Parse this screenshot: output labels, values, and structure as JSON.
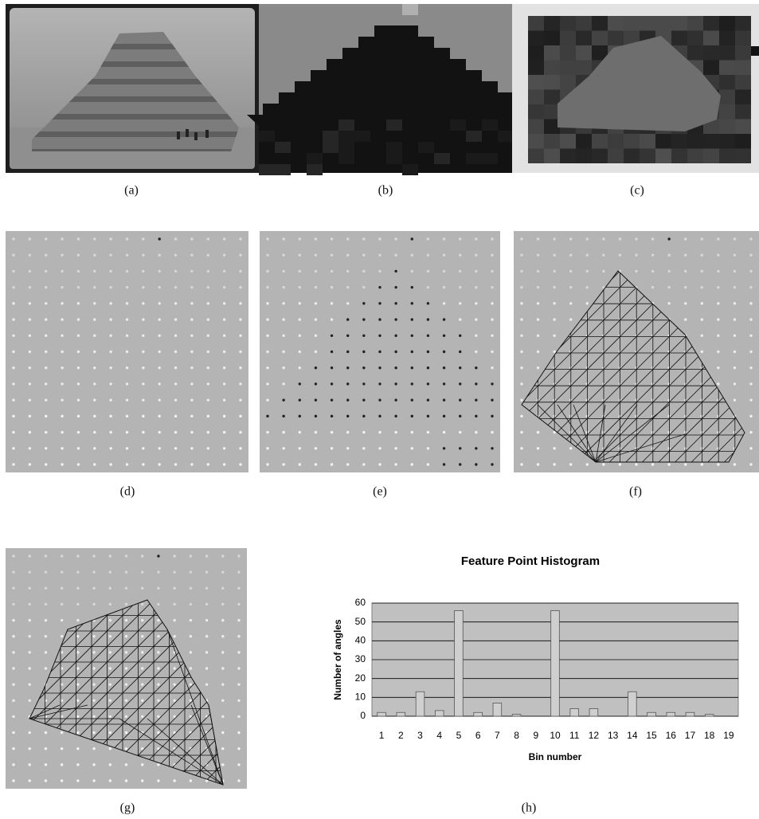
{
  "panels": [
    {
      "label": "(a)"
    },
    {
      "label": "(b)"
    },
    {
      "label": "(c)"
    },
    {
      "label": "(d)"
    },
    {
      "label": "(e)"
    },
    {
      "label": "(f)"
    },
    {
      "label": "(g)"
    },
    {
      "label": "(h)"
    }
  ],
  "chart_data": {
    "type": "bar",
    "title": "Feature Point Histogram",
    "x_label": "Bin number",
    "y_label": "Number of angles",
    "categories": [
      "1",
      "2",
      "3",
      "4",
      "5",
      "6",
      "7",
      "8",
      "9",
      "10",
      "11",
      "12",
      "13",
      "14",
      "15",
      "16",
      "17",
      "18",
      "19"
    ],
    "values": [
      2,
      2,
      13,
      3,
      56,
      2,
      7,
      1,
      0,
      56,
      4,
      4,
      0,
      13,
      2,
      2,
      2,
      1,
      0
    ],
    "color": "#cfcfcf",
    "ylim": [
      0,
      60
    ],
    "yticks": [
      0,
      10,
      20,
      30,
      40,
      50,
      60
    ],
    "grid": true
  }
}
